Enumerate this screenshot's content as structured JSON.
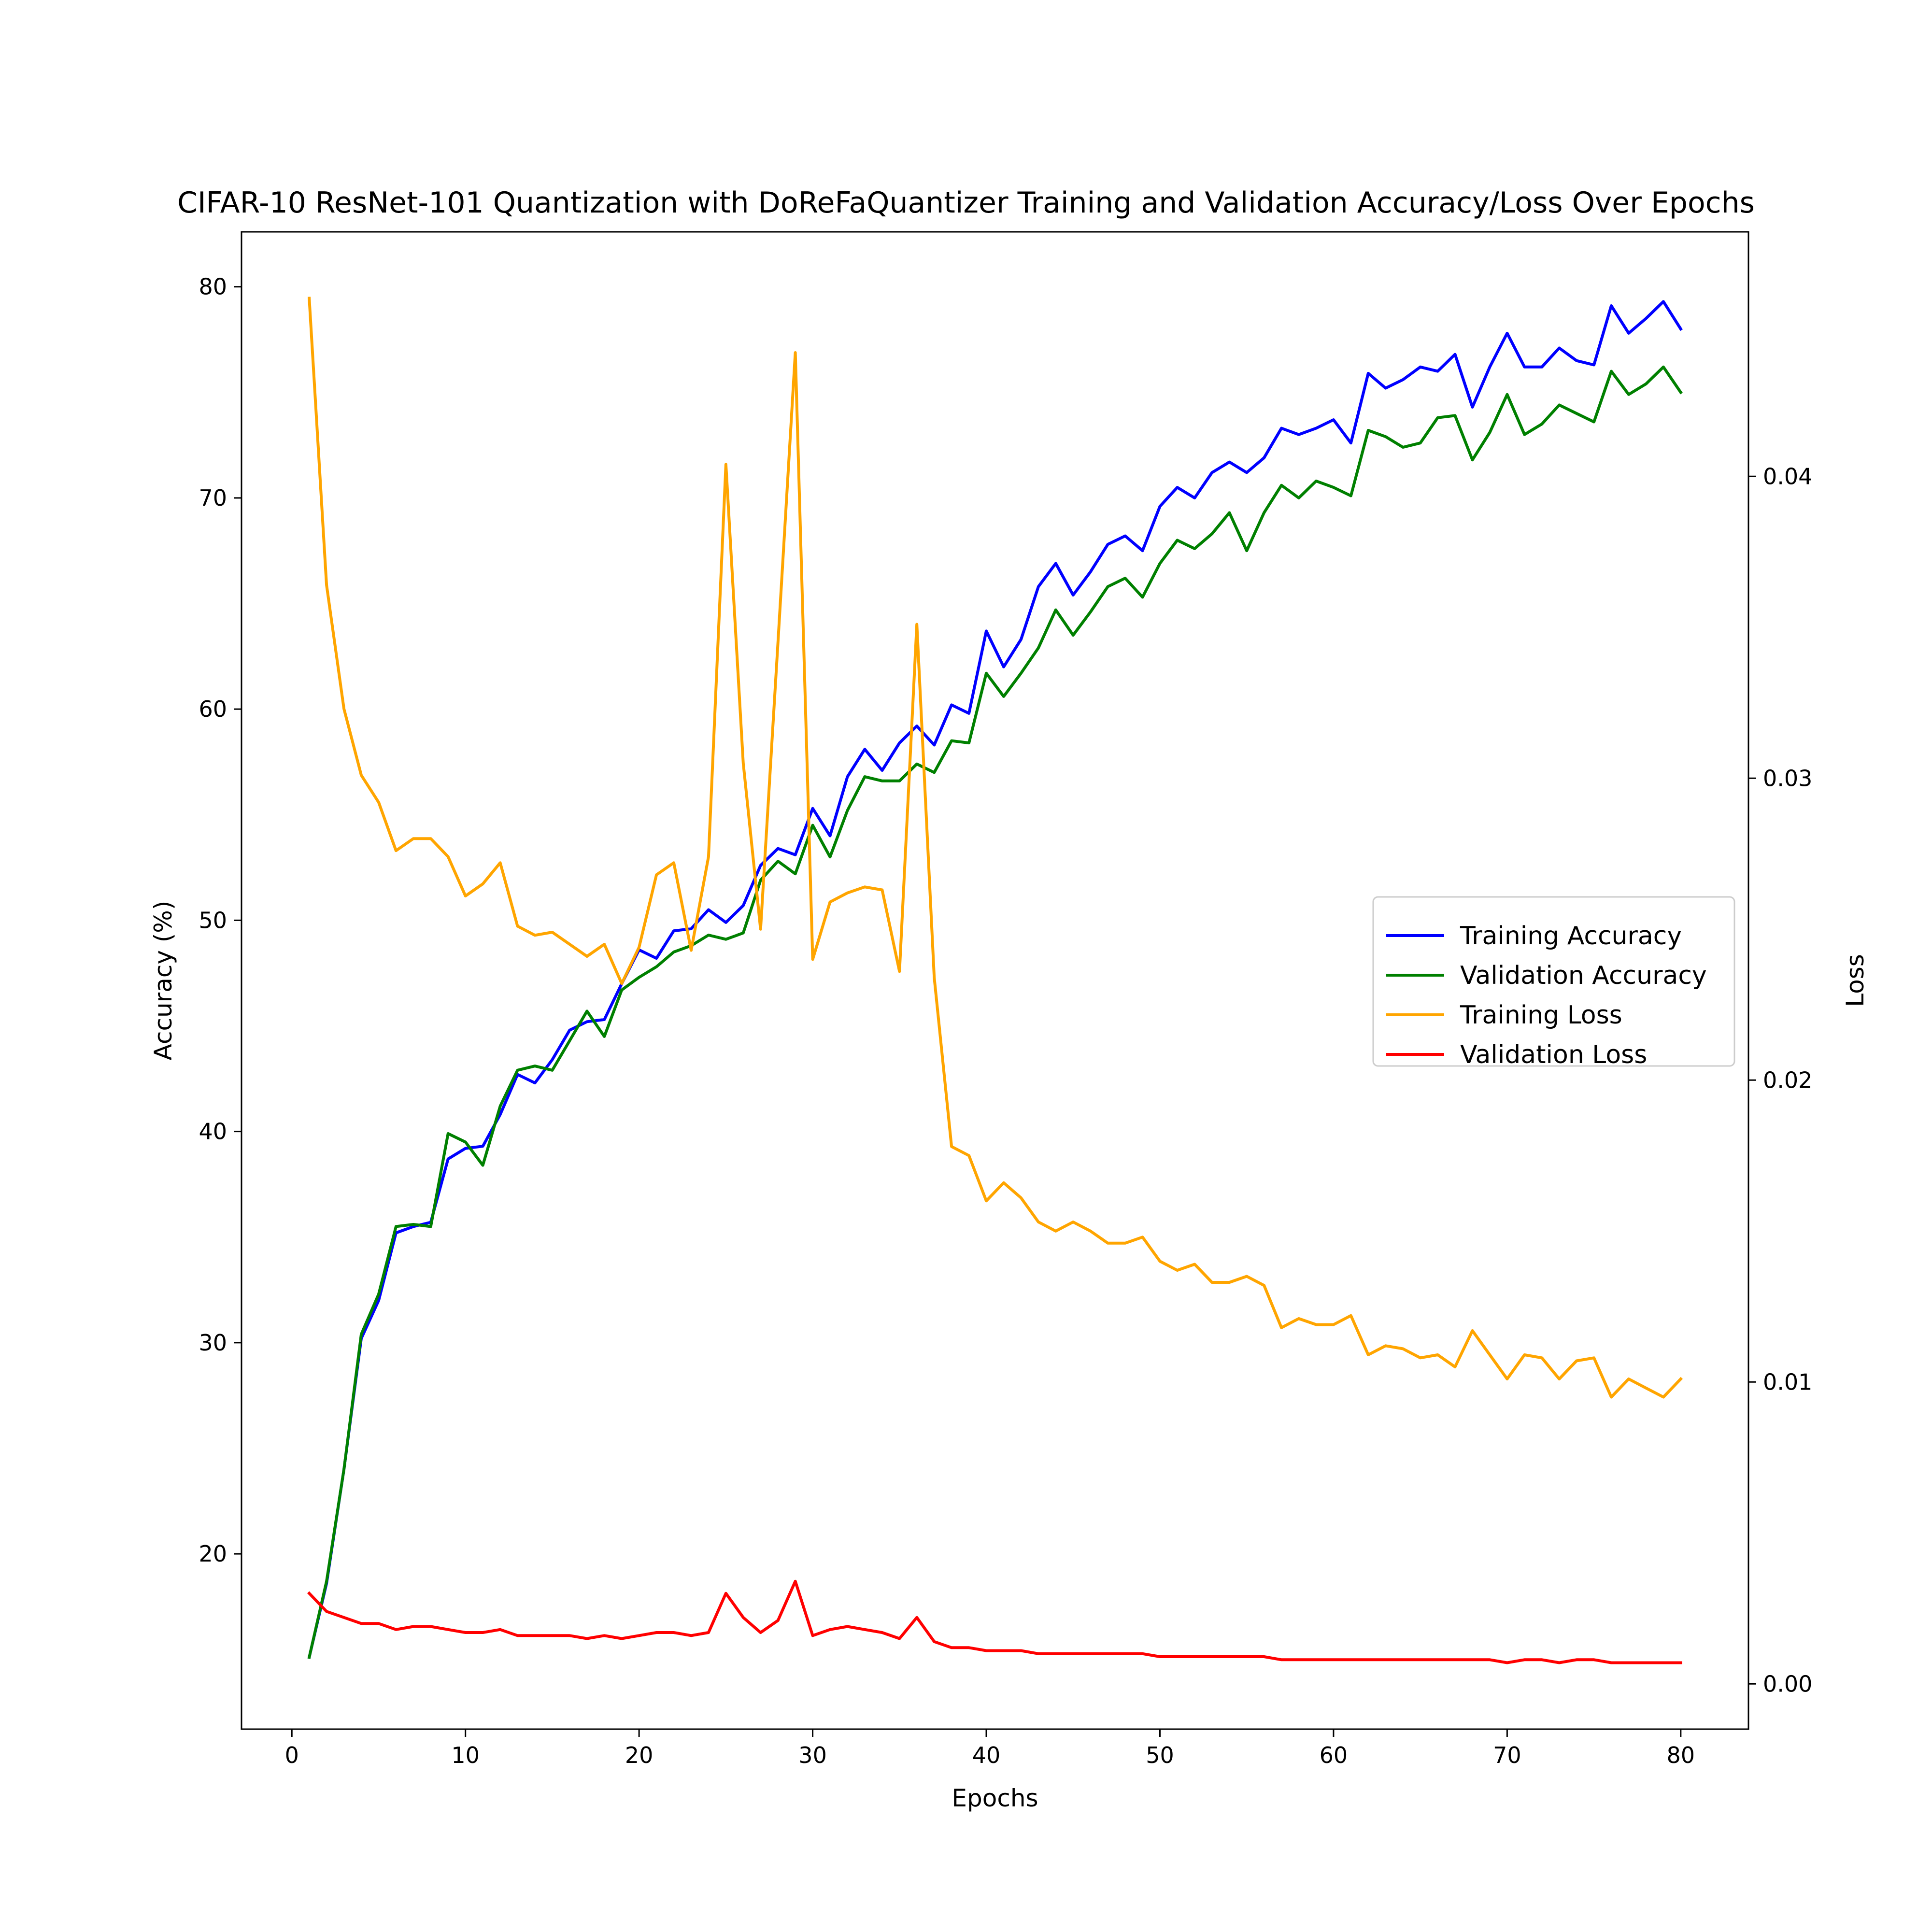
{
  "chart_data": {
    "type": "line",
    "title": "CIFAR-10 ResNet-101 Quantization with DoReFaQuantizer Training and Validation Accuracy/Loss Over Epochs",
    "xlabel": "Epochs",
    "ylabel": "Accuracy (%)",
    "y2label": "Loss",
    "xlim": [
      -2.9,
      83.9
    ],
    "ylim": [
      11.7,
      82.6
    ],
    "y2lim": [
      -0.0015,
      0.0481
    ],
    "x_ticks": [
      0,
      10,
      20,
      30,
      40,
      50,
      60,
      70,
      80
    ],
    "y_ticks": [
      20,
      30,
      40,
      50,
      60,
      70,
      80
    ],
    "y2_ticks": [
      0.0,
      0.01,
      0.02,
      0.03,
      0.04
    ],
    "y2_tick_labels": [
      "0.00",
      "0.01",
      "0.02",
      "0.03",
      "0.04"
    ],
    "legend_position": "center-right",
    "grid": false,
    "x": [
      1,
      2,
      3,
      4,
      5,
      6,
      7,
      8,
      9,
      10,
      11,
      12,
      13,
      14,
      15,
      16,
      17,
      18,
      19,
      20,
      21,
      22,
      23,
      24,
      25,
      26,
      27,
      28,
      29,
      30,
      31,
      32,
      33,
      34,
      35,
      36,
      37,
      38,
      39,
      40,
      41,
      42,
      43,
      44,
      45,
      46,
      47,
      48,
      49,
      50,
      51,
      52,
      53,
      54,
      55,
      56,
      57,
      58,
      59,
      60,
      61,
      62,
      63,
      64,
      65,
      66,
      67,
      68,
      69,
      70,
      71,
      72,
      73,
      74,
      75,
      76,
      77,
      78,
      79,
      80
    ],
    "series": [
      {
        "name": "Training Accuracy",
        "axis": "left",
        "color": "#0000ff",
        "values": [
          15.1,
          18.6,
          24.0,
          30.2,
          32.0,
          35.2,
          35.5,
          35.7,
          38.7,
          39.2,
          39.3,
          40.8,
          42.7,
          42.3,
          43.4,
          44.8,
          45.2,
          45.3,
          47.0,
          48.6,
          48.2,
          49.5,
          49.6,
          50.5,
          49.9,
          50.7,
          52.6,
          53.4,
          53.1,
          55.3,
          54.0,
          56.8,
          58.1,
          57.1,
          58.4,
          59.2,
          58.3,
          60.2,
          59.8,
          63.7,
          62.0,
          63.3,
          65.8,
          66.9,
          65.4,
          66.5,
          67.8,
          68.2,
          67.5,
          69.6,
          70.5,
          70.0,
          71.2,
          71.7,
          71.2,
          71.9,
          73.3,
          73.0,
          73.3,
          73.7,
          72.6,
          75.9,
          75.2,
          75.6,
          76.2,
          76.0,
          76.8,
          74.3,
          76.2,
          77.8,
          76.2,
          76.2,
          77.1,
          76.5,
          76.3,
          79.1,
          77.8,
          78.5,
          79.3,
          78.0
        ]
      },
      {
        "name": "Validation Accuracy",
        "axis": "left",
        "color": "#008000",
        "values": [
          15.1,
          18.7,
          24.0,
          30.4,
          32.3,
          35.5,
          35.6,
          35.5,
          39.9,
          39.5,
          38.4,
          41.2,
          42.9,
          43.1,
          42.9,
          44.3,
          45.7,
          44.5,
          46.7,
          47.3,
          47.8,
          48.5,
          48.8,
          49.3,
          49.1,
          49.4,
          51.9,
          52.8,
          52.2,
          54.5,
          53.0,
          55.2,
          56.8,
          56.6,
          56.6,
          57.4,
          57.0,
          58.5,
          58.4,
          61.7,
          60.6,
          61.7,
          62.9,
          64.7,
          63.5,
          64.6,
          65.8,
          66.2,
          65.3,
          66.9,
          68.0,
          67.6,
          68.3,
          69.3,
          67.5,
          69.3,
          70.6,
          70.0,
          70.8,
          70.5,
          70.1,
          73.2,
          72.9,
          72.4,
          72.6,
          73.8,
          73.9,
          71.8,
          73.1,
          74.9,
          73.0,
          73.5,
          74.4,
          74.0,
          73.6,
          76.0,
          74.9,
          75.4,
          76.2,
          75.0
        ]
      },
      {
        "name": "Training Loss",
        "axis": "right",
        "color": "#ffa500",
        "values": [
          0.0459,
          0.0364,
          0.0323,
          0.0301,
          0.0292,
          0.0276,
          0.028,
          0.028,
          0.0274,
          0.0261,
          0.0265,
          0.0272,
          0.0251,
          0.0248,
          0.0249,
          0.0245,
          0.0241,
          0.0245,
          0.0232,
          0.0244,
          0.0268,
          0.0272,
          0.0243,
          0.0274,
          0.0404,
          0.0305,
          0.025,
          0.0345,
          0.0441,
          0.024,
          0.0259,
          0.0262,
          0.0264,
          0.0263,
          0.0236,
          0.0351,
          0.0234,
          0.0178,
          0.0175,
          0.016,
          0.0166,
          0.0161,
          0.0153,
          0.015,
          0.0153,
          0.015,
          0.0146,
          0.0146,
          0.0148,
          0.014,
          0.0137,
          0.0139,
          0.0133,
          0.0133,
          0.0135,
          0.0132,
          0.0118,
          0.0121,
          0.0119,
          0.0119,
          0.0122,
          0.0109,
          0.0112,
          0.0111,
          0.0108,
          0.0109,
          0.0105,
          0.0117,
          0.0109,
          0.0101,
          0.0109,
          0.0108,
          0.0101,
          0.0107,
          0.0108,
          0.0095,
          0.0101,
          0.0098,
          0.0095,
          0.0101
        ]
      },
      {
        "name": "Validation Loss",
        "axis": "right",
        "color": "#ff0000",
        "values": [
          0.003,
          0.0024,
          0.0022,
          0.002,
          0.002,
          0.0018,
          0.0019,
          0.0019,
          0.0018,
          0.0017,
          0.0017,
          0.0018,
          0.0016,
          0.0016,
          0.0016,
          0.0016,
          0.0015,
          0.0016,
          0.0015,
          0.0016,
          0.0017,
          0.0017,
          0.0016,
          0.0017,
          0.003,
          0.0022,
          0.0017,
          0.0021,
          0.0034,
          0.0016,
          0.0018,
          0.0019,
          0.0018,
          0.0017,
          0.0015,
          0.0022,
          0.0014,
          0.0012,
          0.0012,
          0.0011,
          0.0011,
          0.0011,
          0.001,
          0.001,
          0.001,
          0.001,
          0.001,
          0.001,
          0.001,
          0.0009,
          0.0009,
          0.0009,
          0.0009,
          0.0009,
          0.0009,
          0.0009,
          0.0008,
          0.0008,
          0.0008,
          0.0008,
          0.0008,
          0.0008,
          0.0008,
          0.0008,
          0.0008,
          0.0008,
          0.0008,
          0.0008,
          0.0008,
          0.0007,
          0.0008,
          0.0008,
          0.0007,
          0.0008,
          0.0008,
          0.0007,
          0.0007,
          0.0007,
          0.0007,
          0.0007
        ]
      }
    ]
  }
}
